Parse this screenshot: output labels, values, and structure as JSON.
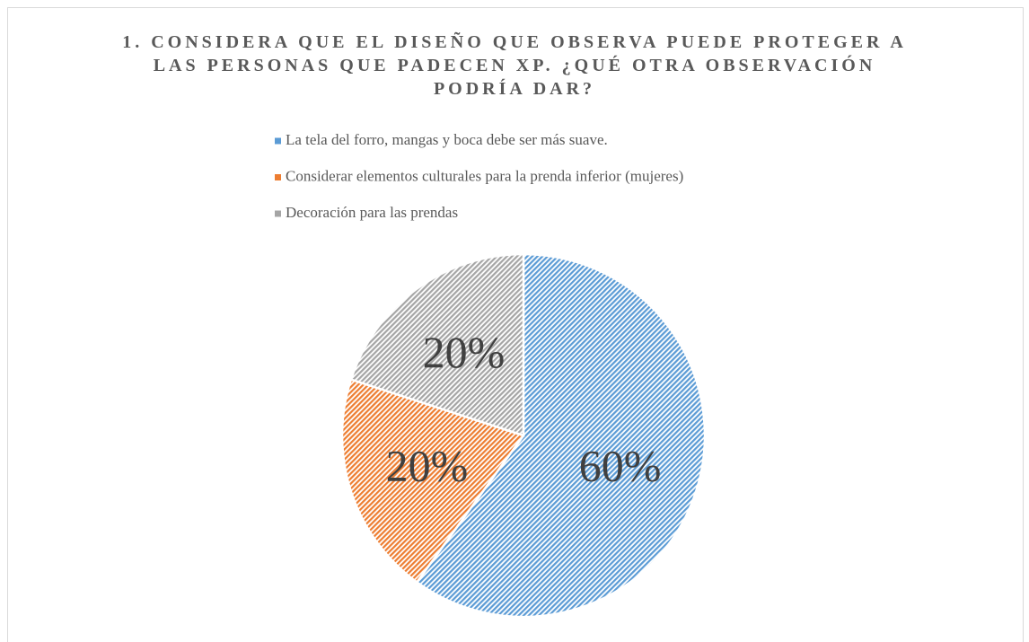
{
  "chart_data": {
    "type": "pie",
    "title": "1. CONSIDERA QUE EL DISEÑO QUE OBSERVA PUEDE PROTEGER A LAS PERSONAS QUE PADECEN XP. ¿QUÉ OTRA OBSERVACIÓN PODRÍA DAR?",
    "categories": [
      "La tela del forro, mangas y boca debe ser más suave.",
      "Considerar elementos culturales para la prenda inferior (mujeres)",
      "Decoración para las prendas"
    ],
    "values": [
      60,
      20,
      20
    ],
    "value_labels": [
      "60%",
      "20%",
      "20%"
    ],
    "colors": [
      "#5b9bd5",
      "#ed7d31",
      "#a5a5a5"
    ],
    "legend": "top"
  }
}
